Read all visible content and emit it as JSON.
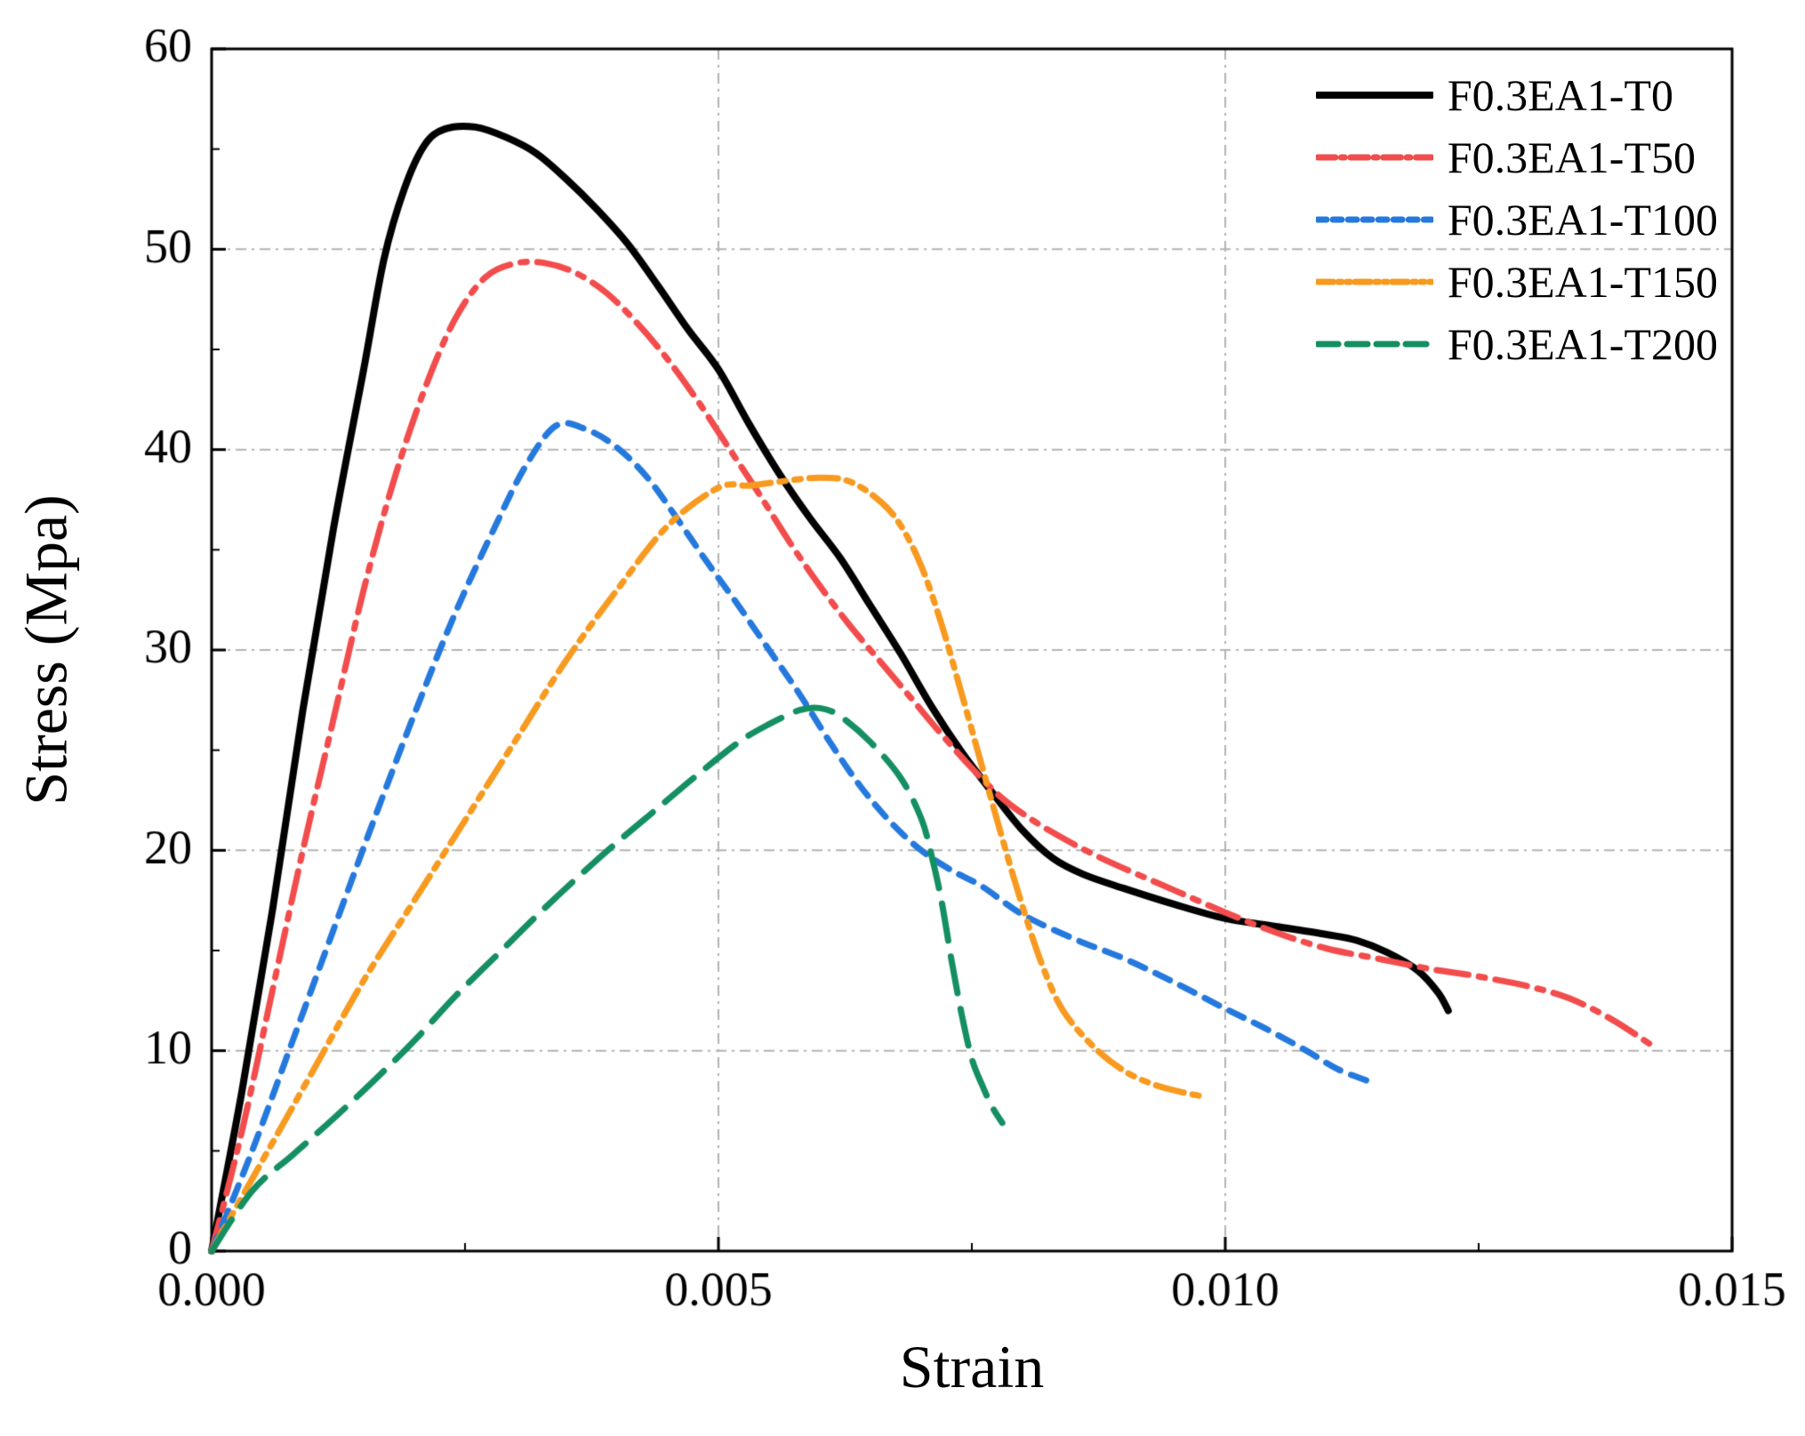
{
  "figure": {
    "xlabel": "Strain",
    "ylabel": "Stress (Mpa)"
  },
  "chart_data": {
    "type": "line",
    "title": "",
    "xlabel": "Strain",
    "ylabel": "Stress (Mpa)",
    "xlim": [
      0,
      0.015
    ],
    "ylim": [
      0,
      60
    ],
    "xticks": [
      {
        "v": 0,
        "label": "0.000"
      },
      {
        "v": 0.005,
        "label": "0.005"
      },
      {
        "v": 0.01,
        "label": "0.010"
      },
      {
        "v": 0.015,
        "label": "0.015"
      }
    ],
    "yticks": [
      {
        "v": 0,
        "label": "0"
      },
      {
        "v": 10,
        "label": "10"
      },
      {
        "v": 20,
        "label": "20"
      },
      {
        "v": 30,
        "label": "30"
      },
      {
        "v": 40,
        "label": "40"
      },
      {
        "v": 50,
        "label": "50"
      },
      {
        "v": 60,
        "label": "60"
      }
    ],
    "xminor": [
      0.0025,
      0.0075,
      0.0125
    ],
    "yminor": [
      5,
      15,
      25,
      35,
      45,
      55
    ],
    "grid": {
      "x": [
        0.005,
        0.01
      ],
      "y": [
        10,
        20,
        30,
        40,
        50
      ],
      "color": "#b3b3b3",
      "dash": [
        12,
        6,
        3,
        6
      ]
    },
    "legend_position": "top-right",
    "series": [
      {
        "name": "F0.3EA1-T0",
        "color": "#000000",
        "width": 8,
        "dash": [],
        "points": [
          [
            0,
            0
          ],
          [
            0.0003,
            8
          ],
          [
            0.0006,
            17
          ],
          [
            0.0009,
            27
          ],
          [
            0.0012,
            36
          ],
          [
            0.0015,
            44
          ],
          [
            0.0017,
            49.5
          ],
          [
            0.0019,
            53
          ],
          [
            0.0021,
            55.2
          ],
          [
            0.0023,
            56
          ],
          [
            0.0026,
            56.1
          ],
          [
            0.0029,
            55.6
          ],
          [
            0.0032,
            54.8
          ],
          [
            0.0035,
            53.5
          ],
          [
            0.0038,
            52
          ],
          [
            0.0041,
            50.3
          ],
          [
            0.0044,
            48.2
          ],
          [
            0.0047,
            46
          ],
          [
            0.005,
            44
          ],
          [
            0.0053,
            41.3
          ],
          [
            0.0056,
            38.8
          ],
          [
            0.0059,
            36.6
          ],
          [
            0.0062,
            34.6
          ],
          [
            0.0065,
            32.2
          ],
          [
            0.0068,
            29.8
          ],
          [
            0.0071,
            27.2
          ],
          [
            0.0074,
            24.9
          ],
          [
            0.0077,
            22.9
          ],
          [
            0.008,
            21
          ],
          [
            0.0083,
            19.6
          ],
          [
            0.0086,
            18.8
          ],
          [
            0.009,
            18.1
          ],
          [
            0.0095,
            17.3
          ],
          [
            0.01,
            16.6
          ],
          [
            0.0105,
            16.2
          ],
          [
            0.011,
            15.8
          ],
          [
            0.0113,
            15.5
          ],
          [
            0.0116,
            14.9
          ],
          [
            0.0119,
            14
          ],
          [
            0.0121,
            12.9
          ],
          [
            0.0122,
            12
          ]
        ]
      },
      {
        "name": "F0.3EA1-T50",
        "color": "#f24c4c",
        "width": 7,
        "dash": [
          36,
          12,
          7,
          12
        ],
        "points": [
          [
            0,
            0
          ],
          [
            0.0003,
            6
          ],
          [
            0.0006,
            13
          ],
          [
            0.0009,
            20
          ],
          [
            0.0012,
            26.5
          ],
          [
            0.0015,
            33
          ],
          [
            0.0018,
            38.5
          ],
          [
            0.0021,
            43
          ],
          [
            0.0024,
            46.5
          ],
          [
            0.0027,
            48.6
          ],
          [
            0.003,
            49.3
          ],
          [
            0.0033,
            49.3
          ],
          [
            0.0036,
            48.8
          ],
          [
            0.0039,
            47.8
          ],
          [
            0.0042,
            46.3
          ],
          [
            0.0045,
            44.5
          ],
          [
            0.0048,
            42.4
          ],
          [
            0.0051,
            40.1
          ],
          [
            0.0054,
            37.8
          ],
          [
            0.0057,
            35.4
          ],
          [
            0.006,
            33.2
          ],
          [
            0.0063,
            31.2
          ],
          [
            0.0066,
            29.4
          ],
          [
            0.0069,
            27.6
          ],
          [
            0.0072,
            25.8
          ],
          [
            0.0075,
            24.1
          ],
          [
            0.0078,
            22.6
          ],
          [
            0.0081,
            21.5
          ],
          [
            0.0084,
            20.6
          ],
          [
            0.0087,
            19.8
          ],
          [
            0.009,
            19.1
          ],
          [
            0.0095,
            18
          ],
          [
            0.01,
            16.9
          ],
          [
            0.0105,
            15.9
          ],
          [
            0.011,
            15.1
          ],
          [
            0.0115,
            14.6
          ],
          [
            0.012,
            14.1
          ],
          [
            0.0125,
            13.7
          ],
          [
            0.013,
            13.2
          ],
          [
            0.0134,
            12.6
          ],
          [
            0.0138,
            11.6
          ],
          [
            0.0142,
            10.3
          ]
        ]
      },
      {
        "name": "F0.3EA1-T100",
        "color": "#2579dd",
        "width": 7,
        "dash": [
          18,
          13
        ],
        "points": [
          [
            0,
            0
          ],
          [
            0.0004,
            5
          ],
          [
            0.0008,
            10.5
          ],
          [
            0.0012,
            16
          ],
          [
            0.0016,
            21.5
          ],
          [
            0.002,
            26.8
          ],
          [
            0.0024,
            31.8
          ],
          [
            0.0028,
            36.2
          ],
          [
            0.0031,
            39.2
          ],
          [
            0.0034,
            41.2
          ],
          [
            0.0037,
            41
          ],
          [
            0.004,
            40.1
          ],
          [
            0.0043,
            38.6
          ],
          [
            0.0046,
            36.5
          ],
          [
            0.0049,
            34.3
          ],
          [
            0.0052,
            32.2
          ],
          [
            0.0055,
            30
          ],
          [
            0.0058,
            27.8
          ],
          [
            0.0061,
            25.4
          ],
          [
            0.0064,
            23.2
          ],
          [
            0.0067,
            21.4
          ],
          [
            0.007,
            20
          ],
          [
            0.0073,
            19
          ],
          [
            0.0076,
            18.2
          ],
          [
            0.008,
            16.8
          ],
          [
            0.0085,
            15.6
          ],
          [
            0.009,
            14.6
          ],
          [
            0.0095,
            13.4
          ],
          [
            0.01,
            12.1
          ],
          [
            0.0104,
            11.1
          ],
          [
            0.0108,
            10
          ],
          [
            0.0111,
            9.1
          ],
          [
            0.0114,
            8.5
          ]
        ]
      },
      {
        "name": "F0.3EA1-T150",
        "color": "#f79a1f",
        "width": 7,
        "dash": [
          32,
          10,
          7,
          10,
          7,
          10
        ],
        "points": [
          [
            0,
            0
          ],
          [
            0.0005,
            4.5
          ],
          [
            0.001,
            9
          ],
          [
            0.0015,
            13.5
          ],
          [
            0.002,
            17.5
          ],
          [
            0.0025,
            21.5
          ],
          [
            0.003,
            25.5
          ],
          [
            0.0035,
            29.5
          ],
          [
            0.004,
            33
          ],
          [
            0.0045,
            36.2
          ],
          [
            0.005,
            38.1
          ],
          [
            0.0053,
            38.2
          ],
          [
            0.0056,
            38.4
          ],
          [
            0.006,
            38.6
          ],
          [
            0.0063,
            38.4
          ],
          [
            0.0066,
            37.4
          ],
          [
            0.0068,
            36.2
          ],
          [
            0.007,
            34.2
          ],
          [
            0.0072,
            31.3
          ],
          [
            0.0074,
            27.8
          ],
          [
            0.0076,
            24.2
          ],
          [
            0.0078,
            20.6
          ],
          [
            0.008,
            17.2
          ],
          [
            0.0082,
            14.2
          ],
          [
            0.0084,
            12
          ],
          [
            0.0087,
            10.2
          ],
          [
            0.009,
            9
          ],
          [
            0.0093,
            8.3
          ],
          [
            0.0096,
            7.9
          ],
          [
            0.0098,
            7.7
          ]
        ]
      },
      {
        "name": "F0.3EA1-T200",
        "color": "#148f62",
        "width": 7,
        "dash": [
          42,
          18
        ],
        "points": [
          [
            0,
            0
          ],
          [
            0.0004,
            3
          ],
          [
            0.0008,
            4.8
          ],
          [
            0.0012,
            6.6
          ],
          [
            0.0016,
            8.5
          ],
          [
            0.002,
            10.5
          ],
          [
            0.0024,
            12.7
          ],
          [
            0.0028,
            14.7
          ],
          [
            0.0032,
            16.7
          ],
          [
            0.0036,
            18.6
          ],
          [
            0.004,
            20.4
          ],
          [
            0.0044,
            22.1
          ],
          [
            0.0048,
            23.8
          ],
          [
            0.0052,
            25.4
          ],
          [
            0.0055,
            26.3
          ],
          [
            0.0058,
            27
          ],
          [
            0.006,
            27.1
          ],
          [
            0.0062,
            26.7
          ],
          [
            0.0065,
            25.4
          ],
          [
            0.0068,
            23.6
          ],
          [
            0.007,
            21.6
          ],
          [
            0.0071,
            19.8
          ],
          [
            0.0072,
            17.5
          ],
          [
            0.0073,
            14.5
          ],
          [
            0.0074,
            11.8
          ],
          [
            0.0075,
            9.6
          ],
          [
            0.0076,
            8.3
          ],
          [
            0.0077,
            7.2
          ],
          [
            0.0078,
            6.4
          ]
        ]
      }
    ]
  }
}
